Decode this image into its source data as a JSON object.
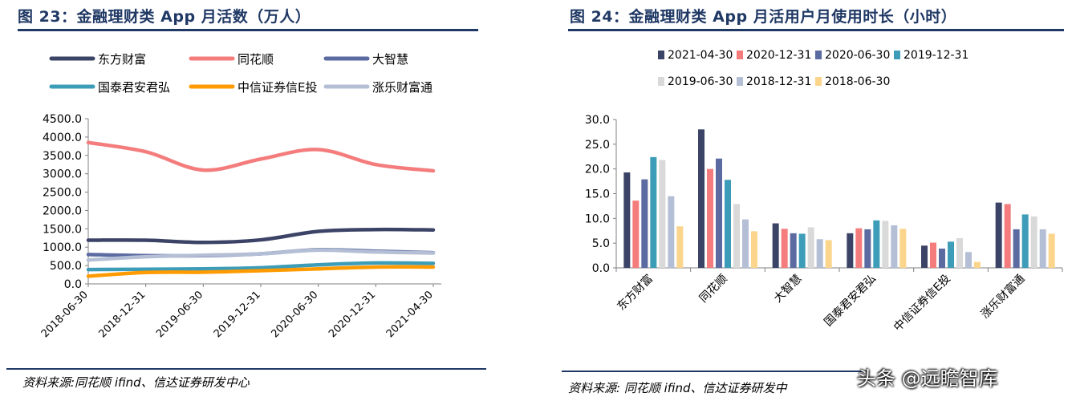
{
  "panels": {
    "left": {
      "title": "图 23：金融理财类 App 月活数（万人）",
      "source": "资料来源:同花顺 ifind、信达证券研发中心"
    },
    "right": {
      "title": "图 24：金融理财类 App 月活用户月使用时长（小时）",
      "source": "资料来源: 同花顺 ifind、信达证券研发中"
    }
  },
  "watermark": "头条 @远瞻智库",
  "chart_data": [
    {
      "type": "line",
      "title": "图 23：金融理财类 App 月活数（万人）",
      "x": [
        "2018-06-30",
        "2018-12-31",
        "2019-06-30",
        "2019-12-31",
        "2020-06-30",
        "2020-12-31",
        "2021-04-30"
      ],
      "ylim": [
        0,
        4500
      ],
      "yticks": [
        "0.0",
        "500.0",
        "1000.0",
        "1500.0",
        "2000.0",
        "2500.0",
        "3000.0",
        "3500.0",
        "4000.0",
        "4500.0"
      ],
      "legend_position": "top",
      "grid": false,
      "series": [
        {
          "name": "东方财富",
          "color": "#3b4466",
          "values": [
            1190,
            1190,
            1130,
            1200,
            1430,
            1480,
            1470
          ]
        },
        {
          "name": "同花顺",
          "color": "#f47c7c",
          "values": [
            3850,
            3600,
            3100,
            3400,
            3660,
            3250,
            3080
          ]
        },
        {
          "name": "大智慧",
          "color": "#5b6aa0",
          "values": [
            800,
            770,
            770,
            820,
            930,
            890,
            850
          ]
        },
        {
          "name": "国泰君安君弘",
          "color": "#3d9cb8",
          "values": [
            390,
            400,
            410,
            440,
            520,
            570,
            560
          ]
        },
        {
          "name": "中信证券信E投",
          "color": "#ff9b00",
          "values": [
            210,
            310,
            320,
            360,
            410,
            460,
            460
          ]
        },
        {
          "name": "涨乐财富通",
          "color": "#b4bfd6",
          "values": [
            650,
            740,
            780,
            820,
            920,
            870,
            840
          ]
        }
      ]
    },
    {
      "type": "bar",
      "title": "图 24：金融理财类 App 月活用户月使用时长（小时）",
      "categories": [
        "东方财富",
        "同花顺",
        "大智慧",
        "国泰君安君弘",
        "中信证券信E投",
        "涨乐财富通"
      ],
      "ylim": [
        0,
        30
      ],
      "yticks": [
        "0.0",
        "5.0",
        "10.0",
        "15.0",
        "20.0",
        "25.0",
        "30.0"
      ],
      "legend_position": "top",
      "grid": false,
      "series": [
        {
          "name": "2021-04-30",
          "color": "#3b4466",
          "values": [
            19.3,
            28.0,
            9.0,
            7.0,
            4.5,
            13.2
          ]
        },
        {
          "name": "2020-12-31",
          "color": "#f47c7c",
          "values": [
            13.6,
            20.0,
            7.9,
            8.0,
            5.1,
            12.9
          ]
        },
        {
          "name": "2020-06-30",
          "color": "#5b6aa0",
          "values": [
            17.9,
            22.1,
            7.0,
            7.8,
            3.9,
            7.8
          ]
        },
        {
          "name": "2019-12-31",
          "color": "#3d9cb8",
          "values": [
            22.4,
            17.8,
            6.9,
            9.6,
            5.3,
            10.8
          ]
        },
        {
          "name": "2019-06-30",
          "color": "#d9d9d9",
          "values": [
            21.8,
            12.9,
            8.2,
            9.5,
            6.0,
            10.4
          ]
        },
        {
          "name": "2018-12-31",
          "color": "#b4bfd6",
          "values": [
            14.5,
            9.8,
            5.8,
            8.6,
            3.2,
            7.8
          ]
        },
        {
          "name": "2018-06-30",
          "color": "#fcd58c",
          "values": [
            8.4,
            7.4,
            5.6,
            7.9,
            1.2,
            6.9
          ]
        }
      ]
    }
  ]
}
